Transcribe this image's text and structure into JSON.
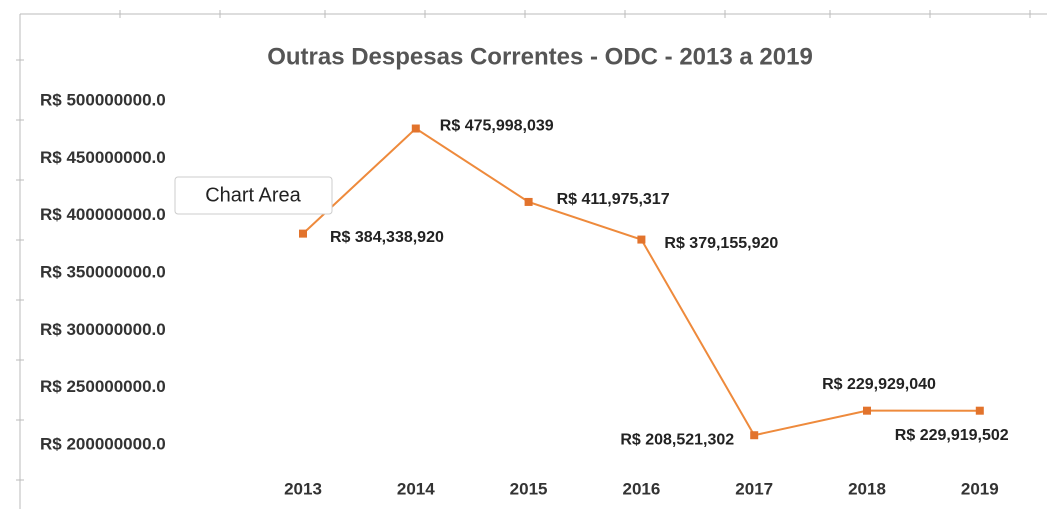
{
  "chart_data": {
    "type": "line",
    "title": "Outras Despesas Correntes - ODC - 2013 a 2019",
    "categories": [
      "2013",
      "2014",
      "2015",
      "2016",
      "2017",
      "2018",
      "2019"
    ],
    "series": [
      {
        "name": "ODC",
        "color": "#ee8a3c",
        "values": [
          384338920,
          475998039,
          411975317,
          379155920,
          208521302,
          229929040,
          229919502
        ],
        "value_labels": [
          "R$ 384,338,920",
          "R$ 475,998,039",
          "R$ 411,975,317",
          "R$ 379,155,920",
          "R$ 208,521,302",
          "R$ 229,929,040",
          "R$ 229,919,502"
        ]
      }
    ],
    "ylim": [
      200000000,
      500000000
    ],
    "yticks": [
      {
        "value": 200000000,
        "label": "R$ 200000000.0"
      },
      {
        "value": 250000000,
        "label": "R$ 250000000.0"
      },
      {
        "value": 300000000,
        "label": "R$ 300000000.0"
      },
      {
        "value": 350000000,
        "label": "R$ 350000000.0"
      },
      {
        "value": 400000000,
        "label": "R$ 400000000.0"
      },
      {
        "value": 450000000,
        "label": "R$ 450000000.0"
      },
      {
        "value": 500000000,
        "label": "R$ 500000000.0"
      }
    ],
    "grid": false
  },
  "tooltip": "Chart Area"
}
